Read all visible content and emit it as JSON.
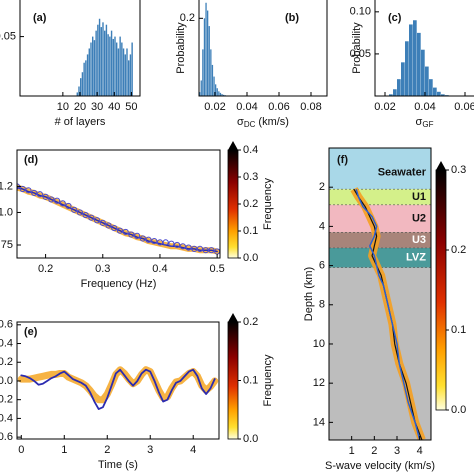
{
  "chart_data": [
    {
      "type": "histogram",
      "panel_label": "(a)",
      "xlabel": "# of layers",
      "color": "#3d7fb8",
      "bins": [
        18,
        19,
        20,
        21,
        22,
        23,
        24,
        25,
        26,
        27,
        28,
        29,
        30,
        31,
        32,
        33,
        34,
        35,
        36,
        37,
        38,
        39,
        40,
        41,
        42,
        43,
        44,
        45,
        46,
        47,
        48,
        49,
        50,
        51
      ],
      "values": [
        0.003,
        0.008,
        0.015,
        0.02,
        0.028,
        0.03,
        0.035,
        0.04,
        0.045,
        0.05,
        0.047,
        0.055,
        0.06,
        0.065,
        0.058,
        0.062,
        0.055,
        0.06,
        0.052,
        0.05,
        0.055,
        0.048,
        0.05,
        0.045,
        0.04,
        0.05,
        0.045,
        0.04,
        0.035,
        0.04,
        0.03,
        0.035,
        0.045
      ],
      "xlim": [
        -15,
        55
      ],
      "xticks": [
        10,
        20,
        30,
        40,
        50
      ],
      "ylim": [
        0,
        0.085
      ],
      "yticks": [
        0.05
      ]
    },
    {
      "type": "histogram",
      "panel_label": "(b)",
      "xlabel": {
        "symbol": "σ",
        "sub": "DC",
        "unit": "(km/s)"
      },
      "ylabel": "Probability",
      "color": "#3d7fb8",
      "bins": [
        0.01,
        0.011,
        0.012,
        0.013,
        0.014,
        0.015,
        0.016,
        0.017,
        0.018,
        0.019,
        0.02,
        0.021,
        0.022,
        0.023,
        0.024,
        0.025,
        0.026,
        0.027,
        0.028,
        0.029,
        0.03
      ],
      "values": [
        0.01,
        0.04,
        0.12,
        0.2,
        0.24,
        0.22,
        0.18,
        0.12,
        0.08,
        0.05,
        0.03,
        0.02,
        0.012,
        0.008,
        0.005,
        0.003,
        0.002,
        0.001,
        0.001,
        0.0005
      ],
      "xlim": [
        0.01,
        0.09
      ],
      "xticks": [
        0.02,
        0.04,
        0.06,
        0.08
      ],
      "ylim": [
        0,
        0.26
      ],
      "yticks": [
        0.2
      ]
    },
    {
      "type": "histogram",
      "panel_label": "(c)",
      "xlabel": {
        "symbol": "σ",
        "sub": "GF"
      },
      "ylabel": "Probability",
      "color": "#3d7fb8",
      "bins": [
        0.022,
        0.024,
        0.026,
        0.028,
        0.03,
        0.032,
        0.034,
        0.036,
        0.038,
        0.04,
        0.042,
        0.044,
        0.046,
        0.048,
        0.05,
        0.052
      ],
      "values": [
        0.002,
        0.008,
        0.02,
        0.04,
        0.065,
        0.085,
        0.09,
        0.075,
        0.055,
        0.035,
        0.02,
        0.01,
        0.005,
        0.002,
        0.001
      ],
      "xlim": [
        0.015,
        0.065
      ],
      "xticks": [
        0.02,
        0.04,
        0.06
      ],
      "ylim": [
        0,
        0.12
      ],
      "yticks": [
        {
          "value": 0.05,
          "label": "0.05"
        },
        {
          "value": 0.1,
          "label": "0.10"
        }
      ]
    },
    {
      "type": "line",
      "panel_label": "(d)",
      "xlabel": "Frequency (Hz)",
      "x": [
        0.15,
        0.16,
        0.17,
        0.18,
        0.19,
        0.2,
        0.21,
        0.22,
        0.23,
        0.24,
        0.25,
        0.26,
        0.27,
        0.28,
        0.29,
        0.3,
        0.31,
        0.32,
        0.33,
        0.34,
        0.35,
        0.36,
        0.37,
        0.38,
        0.39,
        0.4,
        0.41,
        0.42,
        0.43,
        0.44,
        0.45,
        0.46,
        0.47,
        0.48,
        0.49,
        0.5
      ],
      "series": [
        {
          "color": "#f5a623",
          "values": [
            1.19,
            1.18,
            1.16,
            1.15,
            1.13,
            1.12,
            1.1,
            1.08,
            1.06,
            1.04,
            1.02,
            1.0,
            0.98,
            0.96,
            0.94,
            0.92,
            0.9,
            0.88,
            0.86,
            0.84,
            0.83,
            0.81,
            0.8,
            0.78,
            0.77,
            0.76,
            0.75,
            0.74,
            0.74,
            0.73,
            0.72,
            0.72,
            0.71,
            0.71,
            0.71,
            0.7
          ]
        },
        {
          "color": "#2b2bb0",
          "values": [
            1.19,
            1.18,
            1.16,
            1.15,
            1.13,
            1.12,
            1.1,
            1.08,
            1.06,
            1.04,
            1.02,
            1.0,
            0.98,
            0.96,
            0.94,
            0.92,
            0.9,
            0.88,
            0.86,
            0.84,
            0.83,
            0.81,
            0.8,
            0.78,
            0.77,
            0.76,
            0.75,
            0.74,
            0.74,
            0.73,
            0.72,
            0.72,
            0.71,
            0.71,
            0.71,
            0.7
          ]
        },
        {
          "color": "#4a4ad0",
          "marker": "circle",
          "values": [
            1.2,
            1.18,
            1.17,
            1.15,
            1.14,
            1.12,
            1.1,
            1.09,
            1.07,
            1.05,
            1.02,
            1.0,
            0.98,
            0.96,
            0.94,
            0.92,
            0.9,
            0.88,
            0.86,
            0.85,
            0.83,
            0.82,
            0.8,
            0.79,
            0.78,
            0.77,
            0.77,
            0.76,
            0.75,
            0.74,
            0.73,
            0.72,
            0.72,
            0.71,
            0.71,
            0.7
          ]
        }
      ],
      "xlim": [
        0.15,
        0.505
      ],
      "xticks": [
        0.2,
        0.3,
        0.4,
        0.5
      ],
      "ylim": [
        0.65,
        1.48
      ],
      "yticks": [
        1.2,
        {
          "value": 1,
          "label": "1.0"
        },
        0.75
      ],
      "colorbar": {
        "label": "Frequency",
        "lim": [
          0,
          0.4
        ],
        "ticks": [
          {
            "value": 0,
            "label": "0.0"
          },
          0.1,
          0.2,
          0.3,
          0.4
        ]
      }
    },
    {
      "type": "line",
      "panel_label": "(e)",
      "xlabel": "Time (s)",
      "x": [
        0,
        0.1,
        0.2,
        0.3,
        0.4,
        0.5,
        0.6,
        0.7,
        0.8,
        0.9,
        1,
        1.1,
        1.2,
        1.3,
        1.4,
        1.5,
        1.6,
        1.7,
        1.8,
        1.9,
        2,
        2.1,
        2.2,
        2.3,
        2.4,
        2.5,
        2.6,
        2.7,
        2.8,
        2.9,
        3,
        3.1,
        3.2,
        3.3,
        3.4,
        3.5,
        3.6,
        3.7,
        3.8,
        3.9,
        4,
        4.1,
        4.2,
        4.3,
        4.4,
        4.5
      ],
      "series": [
        {
          "color": "#f5a623",
          "values": [
            0.02,
            0.02,
            0.02,
            0.03,
            0.04,
            0.05,
            0.06,
            0.07,
            0.07,
            0.08,
            0.08,
            0.04,
            0.02,
            0.0,
            -0.02,
            -0.05,
            -0.1,
            -0.16,
            -0.2,
            -0.2,
            -0.14,
            -0.04,
            0.07,
            0.12,
            0.08,
            0.02,
            -0.03,
            0.0,
            0.07,
            0.12,
            0.1,
            0.0,
            -0.1,
            -0.18,
            -0.17,
            -0.08,
            -0.01,
            0.0,
            0.04,
            0.08,
            0.1,
            0.05,
            -0.05,
            -0.1,
            -0.06,
            0.0
          ]
        },
        {
          "color": "#2b2bb0",
          "values": [
            0.06,
            0.05,
            0.03,
            0.0,
            -0.04,
            -0.03,
            0.0,
            0.03,
            0.05,
            0.08,
            0.1,
            0.06,
            0.02,
            0.0,
            -0.02,
            -0.05,
            -0.12,
            -0.22,
            -0.3,
            -0.28,
            -0.18,
            -0.05,
            0.08,
            0.12,
            0.06,
            0.0,
            -0.05,
            0.0,
            0.08,
            0.12,
            0.1,
            0.0,
            -0.12,
            -0.22,
            -0.2,
            -0.1,
            -0.02,
            0.0,
            0.05,
            0.1,
            0.12,
            0.05,
            -0.08,
            -0.14,
            -0.08,
            0.02
          ]
        }
      ],
      "xlim": [
        -0.1,
        4.6
      ],
      "xticks": [
        0,
        1,
        2,
        3,
        4
      ],
      "ylim": [
        -0.62,
        0.63
      ],
      "yticks": [
        0.6,
        0.4,
        0.2,
        {
          "value": 0,
          "label": "0.0"
        },
        -0.2,
        -0.4,
        -0.6
      ],
      "colorbar": {
        "label": "Frequency",
        "lim": [
          0,
          0.2
        ],
        "ticks": [
          {
            "value": 0,
            "label": "0.0"
          },
          0.1,
          0.2
        ]
      }
    },
    {
      "type": "profile",
      "panel_label": "(f)",
      "xlabel": "S-wave velocity (km/s)",
      "ylabel": "Depth (km)",
      "y_inverted": true,
      "layers": [
        {
          "name": "Seawater",
          "top": 0,
          "bottom": 2.1,
          "color": "#a9d8e8",
          "label_color": "#111111"
        },
        {
          "name": "U1",
          "top": 2.1,
          "bottom": 2.9,
          "color": "#d4f08a",
          "label_color": "#111111"
        },
        {
          "name": "U2",
          "top": 2.9,
          "bottom": 4.3,
          "color": "#f2b8c0",
          "label_color": "#111111"
        },
        {
          "name": "U3",
          "top": 4.3,
          "bottom": 5.1,
          "color": "#a8847a",
          "label_color": "#ffffff"
        },
        {
          "name": "LVZ",
          "top": 5.1,
          "bottom": 6.1,
          "color": "#4a9a9a",
          "label_color": "#ffffff"
        },
        {
          "top": 6.1,
          "bottom": 14.9,
          "color": "#bdbdbd"
        }
      ],
      "depth": [
        2.1,
        2.5,
        3.0,
        3.5,
        4.0,
        4.5,
        5.0,
        5.5,
        6.0,
        6.5,
        7,
        8,
        9,
        10,
        11,
        12,
        13,
        14,
        14.9
      ],
      "series": [
        {
          "color": "#f5a020",
          "values": [
            1.1,
            1.3,
            1.6,
            1.8,
            2.0,
            2.1,
            2.0,
            1.9,
            2.1,
            2.3,
            2.4,
            2.6,
            2.8,
            2.9,
            3.1,
            3.4,
            3.6,
            3.8,
            4.1
          ]
        },
        {
          "color": "#111111",
          "values": [
            1.1,
            1.3,
            1.6,
            1.8,
            2.0,
            2.1,
            2.0,
            1.9,
            2.1,
            2.3,
            2.4,
            2.6,
            2.8,
            2.9,
            3.1,
            3.4,
            3.6,
            3.8,
            4.1
          ]
        },
        {
          "color": "#2b5fd0",
          "values": [
            1.2,
            1.3,
            1.5,
            1.9,
            2.1,
            2.0,
            1.8,
            2.0,
            2.1,
            2.2,
            2.4,
            2.6,
            2.8,
            3.0,
            3.1,
            3.3,
            3.5,
            3.8,
            4.0
          ]
        }
      ],
      "xlim": [
        0,
        4.5
      ],
      "xticks": [
        1,
        2,
        3,
        4
      ],
      "ylim": [
        0,
        14.9
      ],
      "yticks": [
        2,
        4,
        6,
        8,
        10,
        12,
        14
      ],
      "colorbar": {
        "lim": [
          0,
          0.3
        ],
        "ticks": [
          {
            "value": 0,
            "label": "0.0"
          },
          0.1,
          0.2,
          0.3
        ]
      }
    }
  ]
}
